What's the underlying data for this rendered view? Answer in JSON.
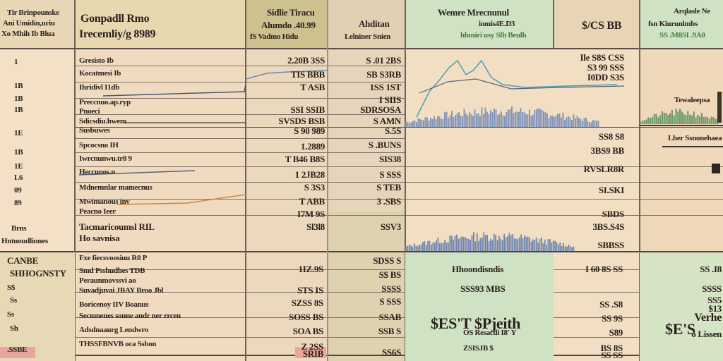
{
  "colors": {
    "tan": "#e9d5b3",
    "olive": "#cfc39a",
    "green": "#cfe2c3",
    "peach": "#f0d6bd",
    "grid": "#7d7166",
    "spark_blue": "#6f86b0",
    "spark_teal": "#4d9db2",
    "spark_green": "#6f9a6a"
  },
  "headers": {
    "col0": [
      "Tir Brinpounske",
      "Ani Umidin,uriu",
      "Xo Mhih Ib Blua"
    ],
    "col1": [
      "Gonpadll Rmo",
      "Irecemliy/g 8989"
    ],
    "col2": [
      "Sidlie Tiracu",
      "Alumdo .40.99",
      "fS Vadmo Hidu"
    ],
    "col3": [
      "Ahditan",
      "Lelniner Snien"
    ],
    "col4": [
      "Wemre Mrecnunul",
      "iomis4E.D3",
      "hhmiri usy Slh Beulh"
    ],
    "col5": [
      "$/CS BB"
    ],
    "col6": [
      "Arqlasle Ne",
      "fsn Kiurunlmbs",
      "SS .M8SI .9A0"
    ]
  },
  "row_numbers": [
    "1",
    "1B",
    "1B",
    "1B",
    "1E",
    "1B",
    "1E",
    "L6",
    "09",
    "89",
    "Brns",
    "Hntuoudlinnes"
  ],
  "row_labels": [
    "Gresisto Ib",
    "Kocatmesi Ib",
    "Ihridivl I1db",
    "Preccnuo.ap.ryp",
    "Pnoeci",
    "Sdicsdiu.hwem",
    "Susbuwes",
    "Spcocsno IH",
    "Iwrcnunwu.tr8 9",
    "Heccunos.n",
    "Mdnemnlar mamecnus",
    "Mwimanous inv",
    "Peacno Ieer",
    "Tacmaricoumsl RIL",
    "Ho savnisa"
  ],
  "col2_values": [
    "2.20B 3SS",
    "TIS BBB",
    "T ASB",
    "SSI SSIB",
    "SVSDS BSB",
    "S 90 989",
    "1.2889",
    "T B46 B8S",
    "1 2JB28",
    "S 3S3",
    "T ABB",
    "I7M 9S",
    "Sl3l8"
  ],
  "col3_values": [
    "S .01 2BS",
    "SB S3RB",
    "1SS 1ST",
    "I SIIS",
    "SDRSOSA",
    "S AMN",
    "S.5S",
    "S .BUNS",
    "SIS38",
    "S SSS",
    "S TEB",
    "3 .SBS",
    "SSV3"
  ],
  "col5_values": [
    "Ile S8S CSS",
    "S3 99 SSS",
    "I0DD S3S",
    "SS8 S8",
    "3BS9 BB",
    "RVSLR8R",
    "SI.SKI",
    "SBDS",
    "3BS.S4S",
    "SBBSS"
  ],
  "lower": {
    "section_left": [
      "CANBE",
      "SHHOGNSTY",
      "S$",
      "Ss",
      "Ss",
      "Sh",
      ".SSBE"
    ],
    "labels": [
      "Fxe fiecsvoosiuu R0 P",
      "Smd Psshudhes TDB",
      "Peraunmovssvi ao",
      "Suvadjuvai JBAY Broo Jbl",
      "Boricenoy IIV Boanus",
      "Secmnenes sonne andr ner rrcen",
      "Adsdnaaurg  Lendwro",
      "THSSFBNVB oca  Ssbon"
    ],
    "col2": [
      "1IZ.9S",
      "STS IS",
      "SZSS 8S",
      "SOSS BS",
      "SOA BS",
      "Z 2SS",
      "SRIB"
    ],
    "col3": [
      "SDSS S",
      "S$ BS",
      "SSSS",
      "S SSS",
      "SSAB",
      "SSB S",
      "SS6S"
    ],
    "col4_title": "Hhoondisndis",
    "col4_sub": "SSS93 MBS",
    "col4_big": "$ES'T   $Pjeith",
    "col4_small": "OS Resacdi   I8'   Y",
    "col4_foot": "ZSISJB $",
    "col5": [
      "I 60 8S SS",
      "SS .S8",
      "SS 9S",
      "S89",
      "BS 8S",
      "SS SS"
    ],
    "col6": [
      "SS .I8",
      "SSSS",
      "SS5",
      "$13",
      "Verhe",
      "o Lissen"
    ],
    "col6_big": "$E'S"
  },
  "mini_headers": {
    "col6_mid_title": "Tewaleepsa",
    "col6_mid_sub": "Lher Ssnonehaea"
  }
}
